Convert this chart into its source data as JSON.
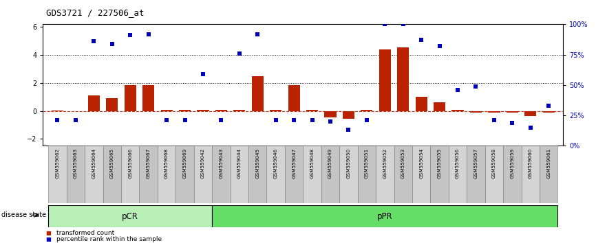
{
  "title": "GDS3721 / 227506_at",
  "samples": [
    "GSM559062",
    "GSM559063",
    "GSM559064",
    "GSM559065",
    "GSM559066",
    "GSM559067",
    "GSM559068",
    "GSM559069",
    "GSM559042",
    "GSM559043",
    "GSM559044",
    "GSM559045",
    "GSM559046",
    "GSM559047",
    "GSM559048",
    "GSM559049",
    "GSM559050",
    "GSM559051",
    "GSM559052",
    "GSM559053",
    "GSM559054",
    "GSM559055",
    "GSM559056",
    "GSM559057",
    "GSM559058",
    "GSM559059",
    "GSM559060",
    "GSM559061"
  ],
  "transformed_count": [
    0.05,
    0.0,
    1.1,
    0.9,
    1.85,
    1.85,
    0.1,
    0.1,
    0.1,
    0.1,
    0.1,
    2.5,
    0.1,
    1.85,
    0.1,
    -0.45,
    -0.55,
    0.1,
    4.4,
    4.55,
    1.0,
    0.6,
    0.1,
    -0.1,
    -0.1,
    -0.1,
    -0.35,
    -0.1
  ],
  "percentile_rank": [
    21,
    21,
    86,
    84,
    91,
    92,
    21,
    21,
    59,
    21,
    76,
    92,
    21,
    21,
    21,
    20,
    13,
    21,
    100,
    100,
    87,
    82,
    46,
    49,
    21,
    19,
    15,
    33
  ],
  "pcr_count": 9,
  "ylim_low": -2.5,
  "ylim_high": 6.2,
  "yticks_left": [
    -2,
    0,
    2,
    4,
    6
  ],
  "yticks_right_pct": [
    0,
    25,
    50,
    75,
    100
  ],
  "yticks_right_labels": [
    "0%",
    "25%",
    "50%",
    "75%",
    "100%"
  ],
  "bar_color": "#bb2200",
  "dot_color": "#0000bb",
  "pcr_fill": "#b8f0b8",
  "ppr_fill": "#66dd66",
  "legend_bar_label": "transformed count",
  "legend_dot_label": "percentile rank within the sample",
  "disease_state_label": "disease state"
}
